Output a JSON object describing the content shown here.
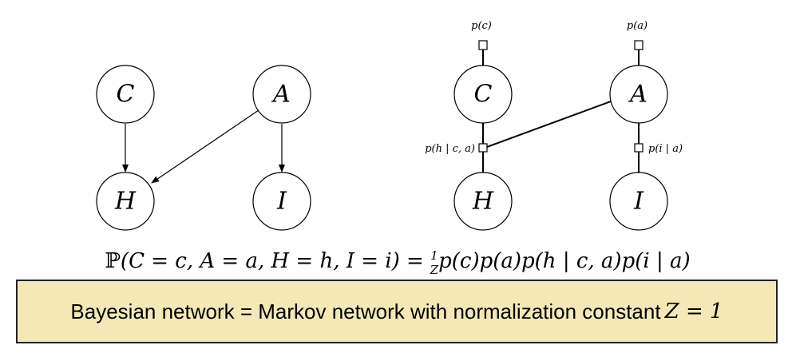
{
  "bayesian_network": {
    "nodes": [
      "C",
      "A",
      "H",
      "I"
    ]
  },
  "markov_network": {
    "nodes": [
      "C",
      "A",
      "H",
      "I"
    ],
    "factors": {
      "pc": "p(c)",
      "pa": "p(a)",
      "phca": "p(h | c, a)",
      "pia": "p(i | a)"
    }
  },
  "equation": {
    "prefix": "ℙ",
    "lhs": "(C = c, A = a, H = h, I = i) = ",
    "frac_num": "1",
    "frac_den": "Z",
    "rhs": "p(c)p(a)p(h | c, a)p(i | a)"
  },
  "callout": {
    "text": "Bayesian network = Markov network with normalization constant ",
    "z_expr": "Z = 1",
    "background": "#f4e9b6"
  }
}
